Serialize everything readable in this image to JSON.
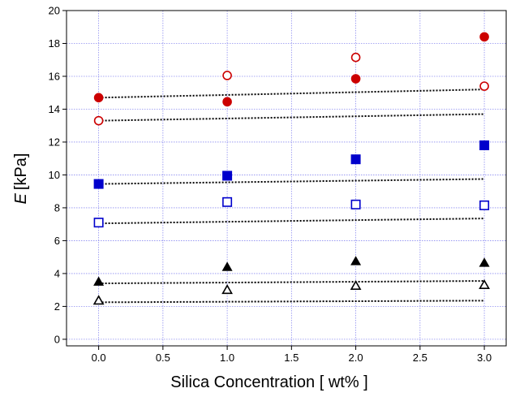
{
  "chart_data": {
    "type": "scatter",
    "xlabel": "Silica Concentration [ wt% ]",
    "ylabel_italic": "E",
    "ylabel_unit": "[kPa]",
    "xlim": [
      -0.25,
      3.17
    ],
    "ylim": [
      -0.4,
      20
    ],
    "xticks": [
      0.0,
      0.5,
      1.0,
      1.5,
      2.0,
      2.5,
      3.0
    ],
    "xtick_labels": [
      "0.0",
      "0.5",
      "1.0",
      "1.5",
      "2.0",
      "2.5",
      "3.0"
    ],
    "yticks": [
      0,
      2,
      4,
      6,
      8,
      10,
      12,
      14,
      16,
      18,
      20
    ],
    "ytick_labels": [
      "0",
      "2",
      "4",
      "6",
      "8",
      "10",
      "12",
      "14",
      "16",
      "18",
      "20"
    ],
    "grid": true,
    "grid_color": "#8c8cf0",
    "series": [
      {
        "marker": "circle",
        "filled": true,
        "color": "#cc0000",
        "x": [
          0,
          1,
          2,
          3
        ],
        "y": [
          14.7,
          14.45,
          15.85,
          18.4
        ]
      },
      {
        "marker": "circle",
        "filled": false,
        "color": "#cc0000",
        "x": [
          0,
          1,
          2,
          3
        ],
        "y": [
          13.3,
          16.05,
          17.15,
          15.4
        ]
      },
      {
        "marker": "square",
        "filled": true,
        "color": "#0000cc",
        "x": [
          0,
          1,
          2,
          3
        ],
        "y": [
          9.45,
          9.95,
          10.95,
          11.8
        ]
      },
      {
        "marker": "square",
        "filled": false,
        "color": "#0000cc",
        "x": [
          0,
          1,
          2,
          3
        ],
        "y": [
          7.1,
          8.35,
          8.2,
          8.15
        ]
      },
      {
        "marker": "triangle",
        "filled": true,
        "color": "#000000",
        "x": [
          0,
          1,
          2,
          3
        ],
        "y": [
          3.5,
          4.4,
          4.75,
          4.65
        ]
      },
      {
        "marker": "triangle",
        "filled": false,
        "color": "#000000",
        "x": [
          0,
          1,
          2,
          3
        ],
        "y": [
          2.35,
          3.0,
          3.25,
          3.3
        ]
      }
    ],
    "trend_lines": [
      {
        "style": "dotted",
        "color": "#000000",
        "x": [
          0,
          3
        ],
        "y": [
          14.7,
          15.2
        ]
      },
      {
        "style": "dotted",
        "color": "#000000",
        "x": [
          0,
          3
        ],
        "y": [
          13.3,
          13.7
        ]
      },
      {
        "style": "dotted",
        "color": "#000000",
        "x": [
          0,
          3
        ],
        "y": [
          9.45,
          9.75
        ]
      },
      {
        "style": "dotted",
        "color": "#000000",
        "x": [
          0,
          3
        ],
        "y": [
          7.05,
          7.35
        ]
      },
      {
        "style": "dotted",
        "color": "#000000",
        "x": [
          0,
          3
        ],
        "y": [
          3.4,
          3.55
        ]
      },
      {
        "style": "dotted",
        "color": "#000000",
        "x": [
          0,
          3
        ],
        "y": [
          2.25,
          2.35
        ]
      }
    ]
  }
}
